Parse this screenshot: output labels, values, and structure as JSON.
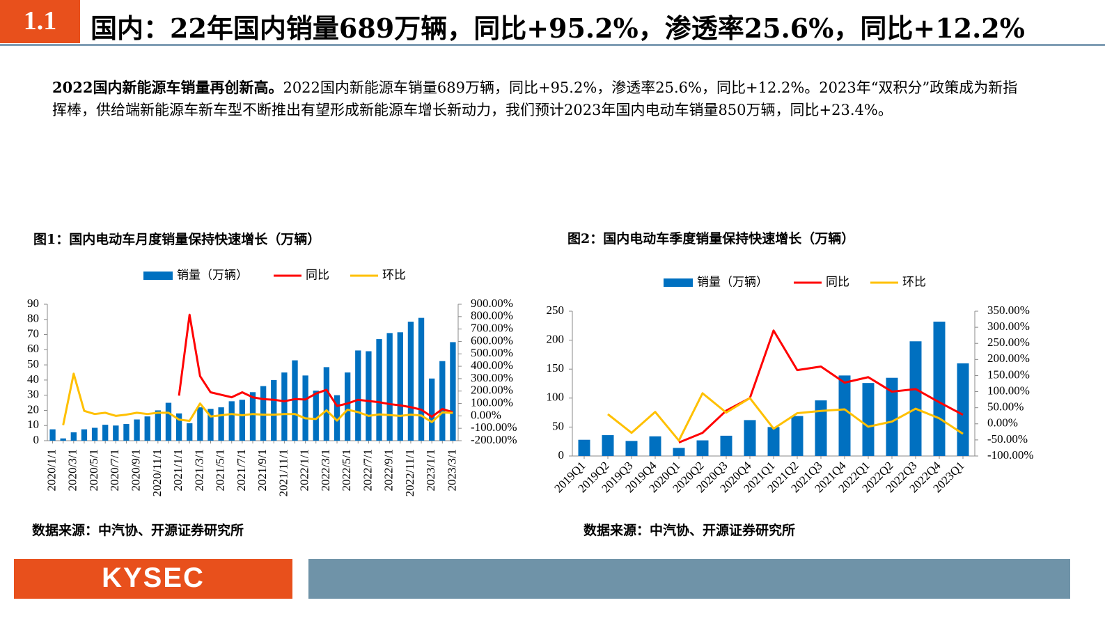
{
  "header": {
    "section": "1.1",
    "title": "国内：22年国内销量689万辆，同比+95.2%，渗透率25.6%，同比+12.2%"
  },
  "paragraph": {
    "bold": "2022国内新能源车销量再创新高。",
    "text": "2022国内新能源车销量689万辆，同比+95.2%，渗透率25.6%，同比+12.2%。2023年“双积分”政策成为新指挥棒，供给端新能源车新车型不断推出有望形成新能源车增长新动力，我们预计2023年国内电动车销量850万辆，同比+23.4%。"
  },
  "chart_data": [
    {
      "type": "bar-line",
      "title": "图1：国内电动车月度销量保持快速增长（万辆）",
      "source": "数据来源：中汽协、开源证券研究所",
      "categories": [
        "2020/1/1",
        null,
        "2020/3/1",
        null,
        "2020/5/1",
        null,
        "2020/7/1",
        null,
        "2020/9/1",
        null,
        "2020/11/1",
        null,
        "2021/1/1",
        null,
        "2021/3/1",
        null,
        "2021/5/1",
        null,
        "2021/7/1",
        null,
        "2021/9/1",
        null,
        "2021/11/1",
        null,
        "2022/1/1",
        null,
        "2022/3/1",
        null,
        "2022/5/1",
        null,
        "2022/7/1",
        null,
        "2022/9/1",
        null,
        "2022/11/1",
        null,
        "2023/1/1",
        null,
        "2023/3/1"
      ],
      "series": [
        {
          "name": "销量（万辆）",
          "color": "#0070c0",
          "kind": "bar",
          "values": [
            7.5,
            1.5,
            5.5,
            7.5,
            8.5,
            10.5,
            10,
            11,
            14,
            16,
            20,
            25,
            18,
            11.5,
            22,
            21,
            22,
            26,
            27,
            32,
            36,
            40,
            45,
            53,
            43,
            33,
            48.5,
            30,
            45,
            59.5,
            59,
            67,
            71,
            71.5,
            78.5,
            81,
            41,
            52.5,
            65
          ]
        },
        {
          "name": "同比",
          "color": "#ff0000",
          "kind": "line",
          "axis": "y2",
          "values": [
            null,
            null,
            null,
            null,
            null,
            null,
            null,
            null,
            null,
            null,
            null,
            null,
            163,
            815,
            320,
            190,
            170,
            150,
            190,
            150,
            135,
            130,
            118,
            135,
            132,
            180,
            210,
            80,
            100,
            130,
            120,
            110,
            95,
            85,
            70,
            50,
            -7,
            55,
            30
          ]
        },
        {
          "name": "环比",
          "color": "#ffc000",
          "kind": "line",
          "axis": "y2",
          "values": [
            null,
            -75,
            340,
            40,
            15,
            25,
            0,
            10,
            25,
            15,
            25,
            25,
            -30,
            -40,
            100,
            -5,
            5,
            15,
            5,
            15,
            10,
            10,
            15,
            15,
            -20,
            -25,
            45,
            -38,
            50,
            30,
            0,
            12,
            6,
            0,
            10,
            3,
            -50,
            28,
            24
          ]
        }
      ],
      "ylim": [
        0,
        90
      ],
      "yticks": [
        0,
        10,
        20,
        30,
        40,
        50,
        60,
        70,
        80,
        90
      ],
      "y2lim": [
        -200,
        900
      ],
      "y2ticks": [
        {
          "value": -200,
          "label": "-200.00%"
        },
        {
          "value": -100,
          "label": "-100.00%"
        },
        {
          "value": 0,
          "label": "0.00%"
        },
        {
          "value": 100,
          "label": "100.00%"
        },
        {
          "value": 200,
          "label": "200.00%"
        },
        {
          "value": 300,
          "label": "300.00%"
        },
        {
          "value": 400,
          "label": "400.00%"
        },
        {
          "value": 500,
          "label": "500.00%"
        },
        {
          "value": 600,
          "label": "600.00%"
        },
        {
          "value": 700,
          "label": "700.00%"
        },
        {
          "value": 800,
          "label": "800.00%"
        },
        {
          "value": 900,
          "label": "900.00%"
        }
      ],
      "legend": "top",
      "grid": false
    },
    {
      "type": "bar-line",
      "title": "图2：国内电动车季度销量保持快速增长（万辆）",
      "source": "数据来源：中汽协、开源证券研究所",
      "categories": [
        "2019Q1",
        "2019Q2",
        "2019Q3",
        "2019Q4",
        "2020Q1",
        "2020Q2",
        "2020Q3",
        "2020Q4",
        "2021Q1",
        "2021Q2",
        "2021Q3",
        "2021Q4",
        "2022Q1",
        "2022Q2",
        "2022Q3",
        "2022Q4",
        "2023Q1"
      ],
      "series": [
        {
          "name": "销量（万辆）",
          "color": "#0070c0",
          "kind": "bar",
          "values": [
            28,
            36,
            26,
            34,
            14,
            27,
            35,
            62,
            50,
            69,
            96,
            139,
            126,
            135,
            198,
            232,
            160
          ]
        },
        {
          "name": "同比",
          "color": "#ff0000",
          "kind": "line",
          "axis": "y2",
          "values": [
            null,
            null,
            null,
            null,
            -58,
            -28,
            41,
            80,
            290,
            167,
            178,
            128,
            145,
            100,
            108,
            67,
            28
          ]
        },
        {
          "name": "环比",
          "color": "#ffc000",
          "kind": "line",
          "axis": "y2",
          "values": [
            null,
            30,
            -28,
            37,
            -52,
            95,
            35,
            80,
            -15,
            33,
            40,
            45,
            -9,
            7,
            47,
            17,
            -31
          ]
        }
      ],
      "ylim": [
        0,
        250
      ],
      "yticks": [
        0,
        50,
        100,
        150,
        200,
        250
      ],
      "y2lim": [
        -100,
        350
      ],
      "y2ticks": [
        {
          "value": -100,
          "label": "-100.00%"
        },
        {
          "value": -50,
          "label": "-50.00%"
        },
        {
          "value": 0,
          "label": "0.00%"
        },
        {
          "value": 50,
          "label": "50.00%"
        },
        {
          "value": 100,
          "label": "100.00%"
        },
        {
          "value": 150,
          "label": "150.00%"
        },
        {
          "value": 200,
          "label": "200.00%"
        },
        {
          "value": 250,
          "label": "250.00%"
        },
        {
          "value": 300,
          "label": "300.00%"
        },
        {
          "value": 350,
          "label": "350.00%"
        }
      ],
      "legend": "top",
      "grid": false
    }
  ],
  "footer": {
    "logo": "KYSEC"
  }
}
